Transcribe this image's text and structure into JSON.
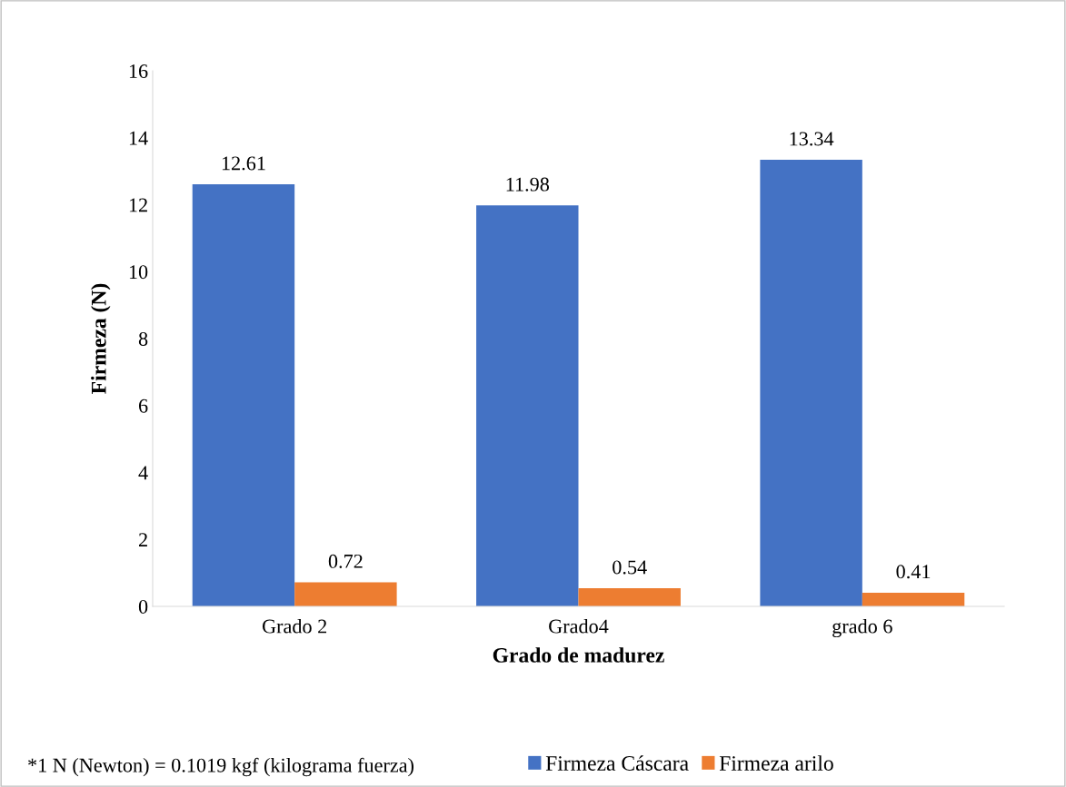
{
  "chart_data": {
    "type": "bar",
    "categories": [
      "Grado 2",
      "Grado4",
      "grado 6"
    ],
    "series": [
      {
        "name": "Firmeza Cáscara",
        "color": "#4472c4",
        "values": [
          12.61,
          11.98,
          13.34
        ]
      },
      {
        "name": "Firmeza arilo",
        "color": "#ed7d31",
        "values": [
          0.72,
          0.54,
          0.41
        ]
      }
    ],
    "xlabel": "Grado de madurez",
    "ylabel": "Firmeza (N)",
    "ylim": [
      0,
      16
    ],
    "yticks": [
      0,
      2,
      4,
      6,
      8,
      10,
      12,
      14,
      16
    ],
    "data_labels": true,
    "grid": false,
    "legend": "bottom",
    "annotations": [
      "*1 N (Newton) = 0.1019 kgf (kilograma fuerza)"
    ]
  }
}
